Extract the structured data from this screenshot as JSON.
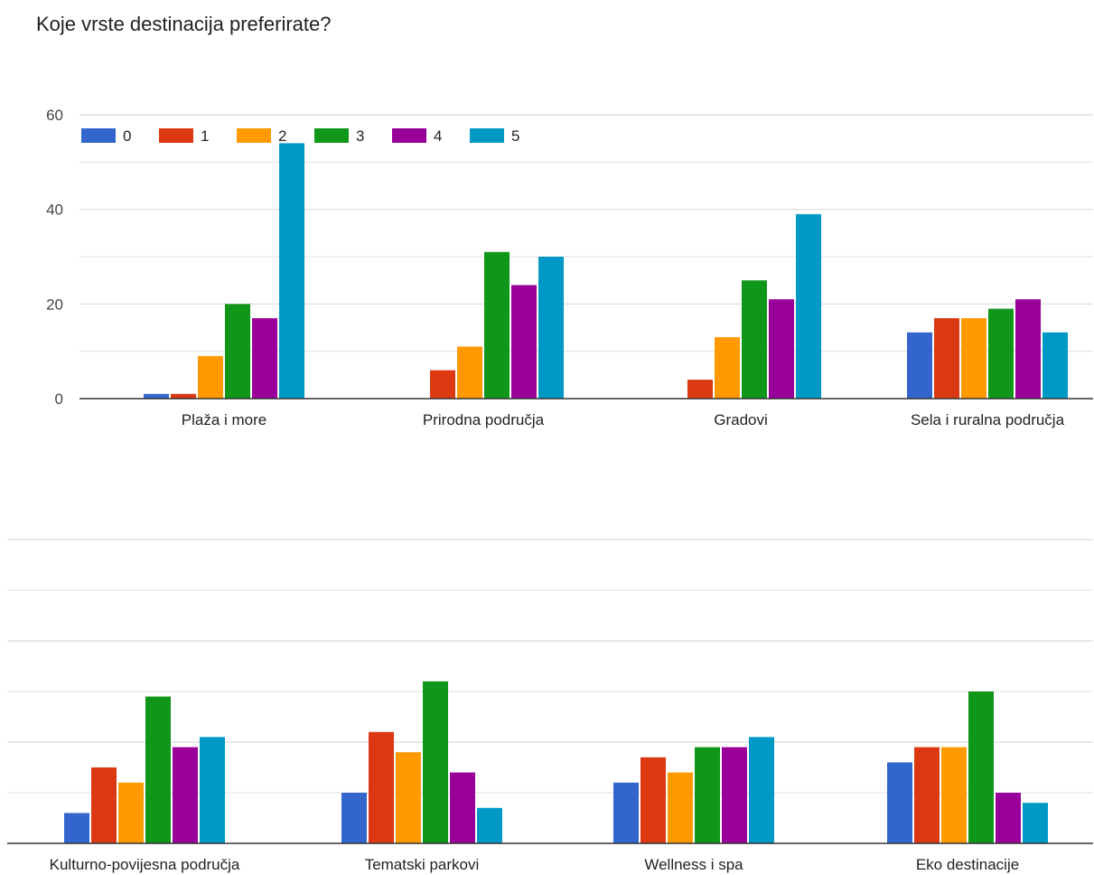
{
  "title": "Koje vrste destinacija preferirate?",
  "colors": {
    "gridline": "#e0e0e0",
    "baseline": "#333333",
    "series": [
      "#3366cc",
      "#dc3912",
      "#ff9900",
      "#109618",
      "#990099",
      "#0099c6"
    ]
  },
  "chart_data": [
    {
      "type": "bar",
      "categories": [
        "Plaža i more",
        "Prirodna područja",
        "Gradovi",
        "Sela i ruralna područja"
      ],
      "series": [
        {
          "name": "0",
          "values": [
            1,
            0,
            0,
            14
          ]
        },
        {
          "name": "1",
          "values": [
            1,
            6,
            4,
            17
          ]
        },
        {
          "name": "2",
          "values": [
            9,
            11,
            13,
            17
          ]
        },
        {
          "name": "3",
          "values": [
            20,
            31,
            25,
            19
          ]
        },
        {
          "name": "4",
          "values": [
            17,
            24,
            21,
            21
          ]
        },
        {
          "name": "5",
          "values": [
            54,
            30,
            39,
            14
          ]
        }
      ],
      "ylim": [
        0,
        60
      ],
      "yticks": [
        "0",
        "20",
        "40",
        "60"
      ],
      "grid": true,
      "legend": "top-left"
    },
    {
      "type": "bar",
      "categories": [
        "Kulturno-povijesna područja",
        "Tematski parkovi",
        "Wellness i spa",
        "Eko destinacije"
      ],
      "series": [
        {
          "name": "0",
          "values": [
            6,
            10,
            12,
            16
          ]
        },
        {
          "name": "1",
          "values": [
            15,
            22,
            17,
            19
          ]
        },
        {
          "name": "2",
          "values": [
            12,
            18,
            14,
            19
          ]
        },
        {
          "name": "3",
          "values": [
            29,
            32,
            19,
            30
          ]
        },
        {
          "name": "4",
          "values": [
            19,
            14,
            19,
            10
          ]
        },
        {
          "name": "5",
          "values": [
            21,
            7,
            21,
            8
          ]
        }
      ],
      "ylim": [
        0,
        60
      ],
      "grid": true
    }
  ]
}
